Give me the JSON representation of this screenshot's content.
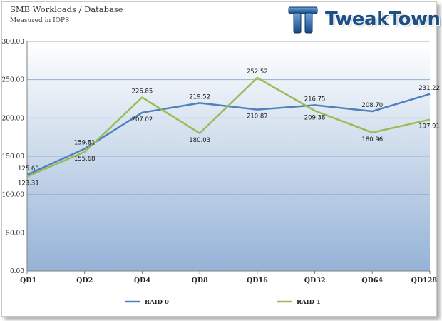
{
  "header": {
    "title": "SMB Workloads / Database",
    "subtitle": "Measured in IOPS",
    "logo_text": "TweakTown"
  },
  "colors": {
    "raid0": "#4f81bd",
    "raid1": "#9bbb59",
    "plot_top": "#ffffff",
    "plot_bottom": "#95b3d7",
    "grid": "#9ab0cc"
  },
  "chart_data": {
    "type": "line",
    "title": "SMB Workloads / Database",
    "subtitle": "Measured in IOPS",
    "xlabel": "",
    "ylabel": "",
    "ylim": [
      0,
      300
    ],
    "yticks": [
      "0.00",
      "50.00",
      "100.00",
      "150.00",
      "200.00",
      "250.00",
      "300.00"
    ],
    "categories": [
      "QD1",
      "QD2",
      "QD4",
      "QD8",
      "QD16",
      "QD32",
      "QD64",
      "QD128"
    ],
    "legend_position": "bottom",
    "series": [
      {
        "name": "RAID 0",
        "values": [
          125.68,
          159.81,
          207.02,
          219.52,
          210.87,
          216.75,
          208.7,
          231.22
        ],
        "labels": [
          "125.68",
          "159.81",
          "207.02",
          "219.52",
          "210.87",
          "216.75",
          "208.70",
          "231.22"
        ]
      },
      {
        "name": "RAID 1",
        "values": [
          123.31,
          155.68,
          226.85,
          180.03,
          252.52,
          209.38,
          180.96,
          197.91
        ],
        "labels": [
          "123.31",
          "155.68",
          "226.85",
          "180.03",
          "252.52",
          "209.38",
          "180.96",
          "197.91"
        ]
      }
    ]
  }
}
